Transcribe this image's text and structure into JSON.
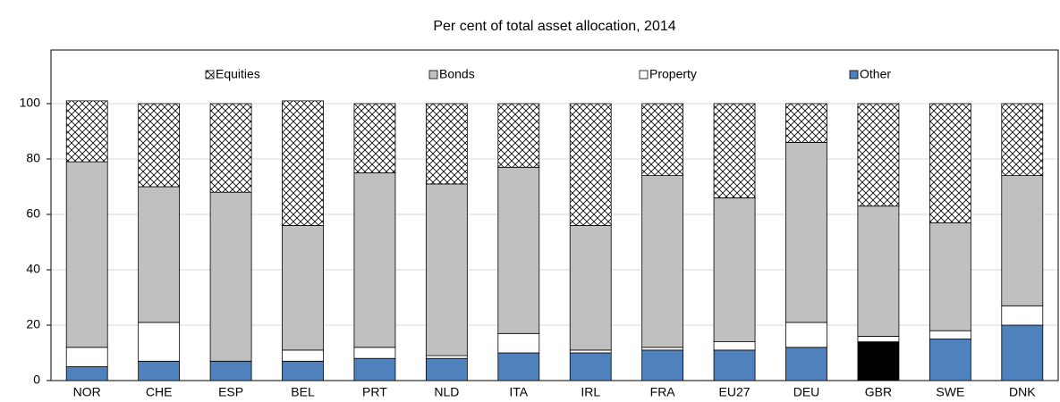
{
  "chart_data": {
    "type": "stacked_bar",
    "title": "Per cent of total asset allocation, 2014",
    "categories": [
      "NOR",
      "CHE",
      "ESP",
      "BEL",
      "PRT",
      "NLD",
      "ITA",
      "IRL",
      "FRA",
      "EU27",
      "DEU",
      "GBR",
      "SWE",
      "DNK"
    ],
    "series": [
      {
        "name": "Equities",
        "color": "#ffffff",
        "pattern": "crosshatch",
        "values": [
          22,
          30,
          32,
          45,
          25,
          29,
          23,
          44,
          26,
          34,
          14,
          37,
          43,
          26
        ]
      },
      {
        "name": "Bonds",
        "color": "#c0c0c0",
        "values": [
          67,
          49,
          61,
          45,
          63,
          62,
          60,
          45,
          62,
          52,
          65,
          47,
          39,
          47
        ]
      },
      {
        "name": "Property",
        "color": "#ffffff",
        "values": [
          7,
          14,
          0,
          4,
          4,
          1,
          7,
          1,
          1,
          3,
          9,
          2,
          3,
          7
        ]
      },
      {
        "name": "Other",
        "color": "#4f81bd",
        "colors": [
          "#4f81bd",
          "#4f81bd",
          "#4f81bd",
          "#4f81bd",
          "#4f81bd",
          "#4f81bd",
          "#4f81bd",
          "#4f81bd",
          "#4f81bd",
          "#4f81bd",
          "#4f81bd",
          "#000000",
          "#4f81bd",
          "#4f81bd"
        ],
        "values": [
          5,
          7,
          7,
          7,
          8,
          8,
          10,
          10,
          11,
          11,
          12,
          14,
          15,
          20
        ]
      }
    ],
    "ylim": [
      0,
      100
    ],
    "yticks": [
      0,
      20,
      40,
      60,
      80,
      100
    ],
    "grid": true,
    "legend": "top"
  }
}
